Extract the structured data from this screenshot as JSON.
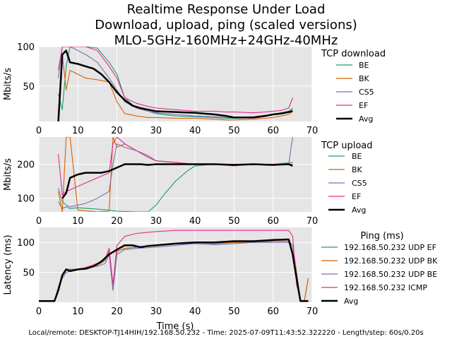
{
  "figure": {
    "title_lines": [
      "Realtime Response Under Load",
      "Download, upload, ping (scaled versions)",
      "MLO-5GHz-160MHz+24GHz-40MHz"
    ],
    "xlabel": "Time (s)",
    "footer": "Local/remote: DESKTOP-TJ14HIH/192.168.50.232 - Time: 2025-07-09T11:43:52.322220 - Length/step: 60s/0.20s",
    "background_color": "#e5e5e5",
    "colors": {
      "BE": "#1b9e77",
      "BK": "#d95f02",
      "CS5": "#7570b3",
      "EF": "#e7298a",
      "Avg": "#000000"
    }
  },
  "chart_data": [
    {
      "type": "line",
      "title": "",
      "ylabel": "Mbits/s",
      "legend_title": "TCP download",
      "xlim": [
        0,
        70
      ],
      "ylim": [
        5,
        100
      ],
      "xticks": [
        0,
        10,
        20,
        30,
        40,
        50,
        60,
        70
      ],
      "yticks": [
        50,
        100
      ],
      "series": [
        {
          "name": "BE",
          "color": "#1b9e77",
          "x": [
            5,
            6,
            7,
            8,
            10,
            12,
            15,
            18,
            20,
            22,
            25,
            28,
            30,
            35,
            40,
            45,
            48,
            50,
            55,
            58,
            60,
            62,
            64,
            65
          ],
          "y": [
            40,
            20,
            75,
            100,
            100,
            100,
            98,
            80,
            65,
            35,
            22,
            18,
            15,
            12,
            11,
            10,
            9,
            9,
            10,
            12,
            14,
            16,
            18,
            22
          ]
        },
        {
          "name": "BK",
          "color": "#d95f02",
          "x": [
            5,
            6,
            7,
            8,
            10,
            12,
            15,
            18,
            20,
            22,
            25,
            28,
            30,
            35,
            40,
            45,
            48,
            50,
            55,
            58,
            60,
            62,
            64,
            65
          ],
          "y": [
            15,
            90,
            45,
            70,
            65,
            60,
            58,
            55,
            30,
            15,
            12,
            10,
            10,
            9,
            9,
            8,
            7,
            7,
            8,
            9,
            10,
            12,
            14,
            18
          ]
        },
        {
          "name": "CS5",
          "color": "#7570b3",
          "x": [
            5,
            6,
            7,
            8,
            10,
            12,
            15,
            18,
            20,
            22,
            25,
            28,
            30,
            35,
            40,
            45,
            48,
            50,
            55,
            58,
            60,
            62,
            64,
            65
          ],
          "y": [
            60,
            100,
            100,
            100,
            95,
            90,
            80,
            60,
            45,
            30,
            22,
            18,
            16,
            14,
            12,
            11,
            10,
            10,
            11,
            13,
            14,
            15,
            17,
            20
          ]
        },
        {
          "name": "EF",
          "color": "#e7298a",
          "x": [
            5,
            6,
            7,
            8,
            10,
            12,
            15,
            18,
            20,
            22,
            25,
            28,
            30,
            35,
            40,
            45,
            48,
            50,
            55,
            58,
            60,
            62,
            64,
            65
          ],
          "y": [
            70,
            100,
            100,
            100,
            100,
            100,
            95,
            75,
            60,
            35,
            28,
            24,
            22,
            20,
            18,
            18,
            17,
            17,
            16,
            17,
            18,
            19,
            22,
            35
          ]
        },
        {
          "name": "Avg",
          "color": "#000000",
          "x": [
            5,
            6,
            7,
            8,
            10,
            12,
            14,
            16,
            18,
            20,
            22,
            24,
            26,
            28,
            30,
            35,
            40,
            45,
            48,
            50,
            55,
            58,
            60,
            62,
            64,
            65
          ],
          "y": [
            5,
            90,
            95,
            80,
            78,
            75,
            72,
            65,
            55,
            42,
            32,
            25,
            22,
            20,
            18,
            17,
            16,
            14,
            12,
            10,
            10,
            12,
            14,
            15,
            17,
            18
          ]
        }
      ]
    },
    {
      "type": "line",
      "title": "",
      "ylabel": "Mbits/s",
      "legend_title": "TCP upload",
      "xlim": [
        0,
        70
      ],
      "ylim": [
        60,
        280
      ],
      "xticks": [
        0,
        10,
        20,
        30,
        40,
        50,
        60,
        70
      ],
      "yticks": [
        100,
        200
      ],
      "series": [
        {
          "name": "BE",
          "color": "#1b9e77",
          "x": [
            5,
            6,
            7,
            8,
            10,
            15,
            18,
            20,
            25,
            28,
            30,
            32,
            35,
            38,
            40,
            45,
            50,
            55,
            60,
            65
          ],
          "y": [
            90,
            70,
            75,
            70,
            72,
            68,
            65,
            62,
            60,
            60,
            80,
            110,
            150,
            180,
            195,
            200,
            198,
            200,
            200,
            205
          ]
        },
        {
          "name": "BK",
          "color": "#d95f02",
          "x": [
            5,
            6,
            7,
            8,
            10,
            15,
            18,
            19,
            20,
            22,
            25,
            28,
            30,
            35,
            40,
            45,
            50,
            55,
            60,
            65
          ],
          "y": [
            120,
            60,
            280,
            280,
            65,
            60,
            62,
            280,
            250,
            260,
            240,
            220,
            210,
            205,
            200,
            200,
            195,
            200,
            198,
            200
          ]
        },
        {
          "name": "CS5",
          "color": "#7570b3",
          "x": [
            5,
            6,
            7,
            8,
            10,
            12,
            15,
            18,
            19,
            20,
            22,
            25,
            28,
            30,
            35,
            40,
            45,
            50,
            55,
            60,
            64,
            65
          ],
          "y": [
            130,
            90,
            80,
            75,
            80,
            85,
            100,
            120,
            200,
            260,
            250,
            240,
            220,
            210,
            205,
            200,
            200,
            200,
            198,
            200,
            200,
            280
          ]
        },
        {
          "name": "EF",
          "color": "#e7298a",
          "x": [
            5,
            6,
            7,
            8,
            10,
            12,
            15,
            18,
            19,
            20,
            22,
            25,
            28,
            30,
            35,
            40,
            45,
            50,
            55,
            60,
            65
          ],
          "y": [
            230,
            110,
            120,
            125,
            135,
            145,
            160,
            175,
            260,
            280,
            260,
            240,
            225,
            210,
            205,
            200,
            200,
            200,
            200,
            200,
            200
          ]
        },
        {
          "name": "Avg",
          "color": "#000000",
          "x": [
            6,
            7,
            8,
            10,
            12,
            14,
            16,
            18,
            20,
            22,
            24,
            26,
            28,
            30,
            35,
            40,
            45,
            50,
            55,
            60,
            64,
            65
          ],
          "y": [
            100,
            115,
            160,
            170,
            175,
            175,
            175,
            180,
            190,
            200,
            200,
            200,
            198,
            200,
            200,
            200,
            200,
            198,
            200,
            198,
            200,
            195
          ]
        }
      ]
    },
    {
      "type": "line",
      "title": "",
      "ylabel": "Latency (ms)",
      "legend_title": "Ping (ms)",
      "xlim": [
        0,
        70
      ],
      "ylim": [
        0,
        125
      ],
      "xticks": [
        0,
        10,
        20,
        30,
        40,
        50,
        60,
        70
      ],
      "yticks": [
        50,
        100
      ],
      "series": [
        {
          "name": "192.168.50.232 UDP EF",
          "color": "#1b9e77",
          "x": [
            0,
            4,
            5,
            6,
            7,
            8,
            10,
            12,
            15,
            17,
            18,
            19,
            20,
            22,
            25,
            30,
            35,
            40,
            45,
            50,
            55,
            60,
            64,
            65,
            66,
            67,
            68,
            69
          ],
          "y": [
            2,
            2,
            25,
            45,
            55,
            55,
            55,
            58,
            62,
            70,
            90,
            20,
            85,
            90,
            92,
            95,
            98,
            100,
            98,
            100,
            100,
            102,
            102,
            95,
            50,
            2,
            2,
            40
          ]
        },
        {
          "name": "192.168.50.232 UDP BK",
          "color": "#d95f02",
          "x": [
            0,
            4,
            5,
            6,
            7,
            8,
            10,
            12,
            15,
            17,
            18,
            19,
            20,
            22,
            25,
            30,
            35,
            40,
            45,
            50,
            55,
            60,
            64,
            65,
            66,
            67,
            68,
            69
          ],
          "y": [
            2,
            2,
            20,
            45,
            55,
            55,
            55,
            58,
            62,
            70,
            85,
            20,
            85,
            90,
            92,
            95,
            98,
            100,
            98,
            100,
            100,
            102,
            102,
            95,
            50,
            2,
            2,
            40
          ]
        },
        {
          "name": "192.168.50.232 UDP BE",
          "color": "#7570b3",
          "x": [
            0,
            4,
            5,
            6,
            7,
            8,
            10,
            12,
            15,
            17,
            18,
            19,
            20,
            22,
            25,
            30,
            35,
            40,
            45,
            50,
            55,
            60,
            64,
            65,
            66,
            67,
            68,
            69
          ],
          "y": [
            2,
            2,
            25,
            40,
            50,
            52,
            55,
            58,
            60,
            65,
            80,
            20,
            80,
            88,
            90,
            92,
            95,
            98,
            96,
            98,
            100,
            100,
            100,
            95,
            40,
            2,
            2,
            2
          ]
        },
        {
          "name": "192.168.50.232 ICMP",
          "color": "#e7298a",
          "x": [
            0,
            4,
            5,
            6,
            7,
            8,
            10,
            12,
            15,
            17,
            18,
            19,
            20,
            22,
            25,
            30,
            35,
            40,
            45,
            50,
            55,
            60,
            64,
            65,
            66,
            67,
            68,
            69
          ],
          "y": [
            2,
            2,
            25,
            45,
            55,
            55,
            55,
            58,
            65,
            72,
            90,
            30,
            95,
            110,
            115,
            118,
            120,
            120,
            120,
            120,
            120,
            120,
            120,
            110,
            30,
            2,
            2,
            2
          ]
        },
        {
          "name": "Avg",
          "color": "#000000",
          "x": [
            0,
            4,
            5,
            6,
            7,
            8,
            10,
            12,
            14,
            16,
            18,
            20,
            22,
            24,
            26,
            28,
            30,
            35,
            40,
            45,
            50,
            55,
            60,
            64,
            65,
            66,
            67,
            68,
            69
          ],
          "y": [
            2,
            2,
            20,
            45,
            55,
            52,
            55,
            56,
            60,
            68,
            80,
            88,
            95,
            95,
            92,
            94,
            95,
            98,
            100,
            100,
            102,
            102,
            104,
            105,
            80,
            40,
            2,
            2,
            2
          ]
        }
      ]
    }
  ]
}
